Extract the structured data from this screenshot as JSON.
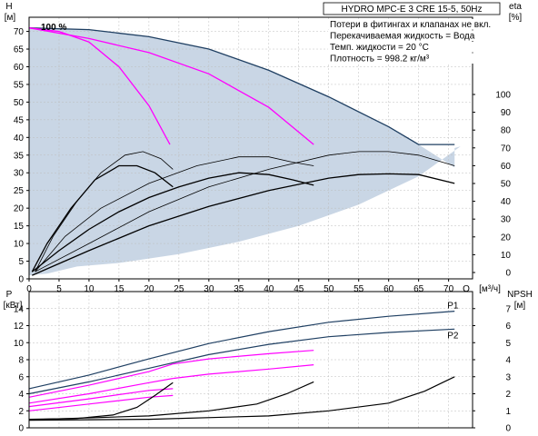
{
  "chart_data": [
    {
      "type": "line",
      "title": "HYDRO MPC-E 3 CRE 15-5, 50Hz",
      "notes": [
        "Потери в фитингах и клапанах не вкл.",
        "Перекачиваемая жидкость = Вода",
        "Темп. жидкости = 20 °C",
        "Плотность = 998.2 кг/м³"
      ],
      "percent_label": "100 %",
      "ylabel": "H",
      "yunit": "[м]",
      "y2label": "eta",
      "y2unit": "[%]",
      "xlabel": "Q",
      "xunit": "[м³/ч]",
      "xlim": [
        0,
        74
      ],
      "ylim": [
        0,
        74
      ],
      "y2lim": [
        0,
        100
      ],
      "xticks": [
        0,
        5,
        10,
        15,
        20,
        25,
        30,
        35,
        40,
        45,
        50,
        55,
        60,
        65,
        70
      ],
      "yticks": [
        0,
        5,
        10,
        15,
        20,
        25,
        30,
        35,
        40,
        45,
        50,
        55,
        60,
        65,
        70
      ],
      "y2ticks": [
        0,
        10,
        20,
        30,
        40,
        50,
        60,
        70,
        80,
        90,
        100
      ],
      "grid": true,
      "area": {
        "upper": [
          [
            0,
            71
          ],
          [
            10,
            70.5
          ],
          [
            20,
            68.5
          ],
          [
            30,
            65
          ],
          [
            40,
            59
          ],
          [
            50,
            51.5
          ],
          [
            60,
            43
          ],
          [
            65,
            38
          ],
          [
            71,
            31.5
          ],
          [
            71,
            37
          ],
          [
            72,
            37.5
          ]
        ],
        "lower": [
          [
            72,
            37.5
          ],
          [
            65,
            29
          ],
          [
            55,
            21
          ],
          [
            45,
            15
          ],
          [
            35,
            10.5
          ],
          [
            25,
            7
          ],
          [
            15,
            4.5
          ],
          [
            8,
            3.5
          ],
          [
            3,
            1.5
          ],
          [
            0,
            1
          ]
        ]
      },
      "series": [
        {
          "color": "#1f3f62",
          "values": [
            [
              0,
              71
            ],
            [
              10,
              70.5
            ],
            [
              20,
              68.5
            ],
            [
              30,
              65
            ],
            [
              40,
              59
            ],
            [
              50,
              51.5
            ],
            [
              60,
              43
            ],
            [
              65,
              38
            ],
            [
              71,
              38
            ]
          ]
        },
        {
          "color": "#ff00ff",
          "values": [
            [
              0,
              71
            ],
            [
              5,
              70
            ],
            [
              10,
              67
            ],
            [
              15,
              60
            ],
            [
              20,
              49
            ],
            [
              23.5,
              38
            ]
          ]
        },
        {
          "color": "#ff00ff",
          "values": [
            [
              0,
              71
            ],
            [
              10,
              68
            ],
            [
              20,
              64
            ],
            [
              30,
              58
            ],
            [
              40,
              48.5
            ],
            [
              47.5,
              38
            ]
          ]
        },
        {
          "color": "#000000",
          "values": [
            [
              0.5,
              2
            ],
            [
              3,
              10
            ],
            [
              7,
              20
            ],
            [
              11,
              28
            ],
            [
              15,
              32
            ],
            [
              18,
              32
            ],
            [
              21,
              30
            ],
            [
              24,
              26
            ]
          ]
        },
        {
          "color": "#000000",
          "values": [
            [
              0.5,
              2
            ],
            [
              5,
              8
            ],
            [
              10,
              14
            ],
            [
              15,
              19
            ],
            [
              20,
              23
            ],
            [
              25,
              26
            ],
            [
              30,
              28.5
            ],
            [
              35,
              30
            ],
            [
              40,
              29.5
            ],
            [
              44,
              28
            ],
            [
              47.5,
              26.5
            ]
          ]
        },
        {
          "color": "#000000",
          "values": [
            [
              0.5,
              1
            ],
            [
              10,
              8
            ],
            [
              20,
              15
            ],
            [
              30,
              20.5
            ],
            [
              40,
              25
            ],
            [
              50,
              28.5
            ],
            [
              55,
              29.5
            ],
            [
              60,
              29.7
            ],
            [
              65,
              29.5
            ],
            [
              71,
              27
            ]
          ]
        },
        {
          "color": "#000000",
          "values": [
            [
              1,
              2
            ],
            [
              4,
              12
            ],
            [
              8,
              22
            ],
            [
              12,
              30
            ],
            [
              16,
              35
            ],
            [
              19,
              36
            ],
            [
              22,
              34
            ],
            [
              24,
              31
            ]
          ]
        },
        {
          "color": "#000000",
          "values": [
            [
              1,
              2
            ],
            [
              6,
              12
            ],
            [
              12,
              20
            ],
            [
              20,
              27
            ],
            [
              28,
              32
            ],
            [
              35,
              34.5
            ],
            [
              40,
              34.5
            ],
            [
              44,
              33
            ],
            [
              47.5,
              32
            ]
          ]
        },
        {
          "color": "#000000",
          "values": [
            [
              1,
              2
            ],
            [
              10,
              10
            ],
            [
              20,
              19
            ],
            [
              30,
              26
            ],
            [
              40,
              31
            ],
            [
              50,
              35
            ],
            [
              55,
              36
            ],
            [
              60,
              36
            ],
            [
              65,
              35
            ],
            [
              71,
              32
            ]
          ]
        }
      ]
    },
    {
      "type": "line",
      "ylabel": "P",
      "yunit": "[кВт]",
      "y2label": "NPSH",
      "y2unit": "[м]",
      "xlim": [
        0,
        74
      ],
      "ylim": [
        0,
        16
      ],
      "y2lim": [
        0,
        8
      ],
      "yticks": [
        0,
        2,
        4,
        6,
        8,
        10,
        12,
        14
      ],
      "y2ticks": [
        0,
        1,
        2,
        3,
        4,
        5,
        6,
        7
      ],
      "grid": true,
      "series": [
        {
          "name": "P1",
          "color": "#1f3f62",
          "values": [
            [
              0,
              4.6
            ],
            [
              10,
              6.2
            ],
            [
              20,
              8.1
            ],
            [
              30,
              9.9
            ],
            [
              40,
              11.3
            ],
            [
              50,
              12.4
            ],
            [
              60,
              13.1
            ],
            [
              71,
              13.7
            ]
          ]
        },
        {
          "name": "P2",
          "color": "#1f3f62",
          "values": [
            [
              0,
              4.0
            ],
            [
              10,
              5.4
            ],
            [
              20,
              7.0
            ],
            [
              30,
              8.6
            ],
            [
              40,
              9.8
            ],
            [
              50,
              10.7
            ],
            [
              60,
              11.2
            ],
            [
              71,
              11.6
            ]
          ]
        },
        {
          "color": "#ff00ff",
          "values": [
            [
              0,
              3.6
            ],
            [
              10,
              5.0
            ],
            [
              20,
              6.6
            ],
            [
              24,
              7.5
            ]
          ]
        },
        {
          "color": "#ff00ff",
          "values": [
            [
              0,
              2.9
            ],
            [
              10,
              4.0
            ],
            [
              20,
              5.3
            ],
            [
              24,
              5.8
            ]
          ]
        },
        {
          "color": "#ff00ff",
          "values": [
            [
              0,
              2.5
            ],
            [
              10,
              3.4
            ],
            [
              20,
              4.4
            ],
            [
              24,
              4.6
            ]
          ]
        },
        {
          "color": "#ff00ff",
          "values": [
            [
              0,
              2.0
            ],
            [
              10,
              2.8
            ],
            [
              20,
              3.6
            ],
            [
              24,
              3.8
            ]
          ]
        },
        {
          "color": "#ff00ff",
          "values": [
            [
              24,
              7.5
            ],
            [
              30,
              8.1
            ],
            [
              40,
              8.7
            ],
            [
              47.5,
              9.1
            ]
          ]
        },
        {
          "color": "#ff00ff",
          "values": [
            [
              24,
              5.8
            ],
            [
              30,
              6.3
            ],
            [
              40,
              6.9
            ],
            [
              47.5,
              7.4
            ]
          ]
        },
        {
          "color": "#000000",
          "values": [
            [
              0,
              1.0
            ],
            [
              8,
              1.1
            ],
            [
              14,
              1.5
            ],
            [
              18,
              2.4
            ],
            [
              21,
              3.8
            ],
            [
              24,
              5.3
            ]
          ]
        },
        {
          "color": "#000000",
          "values": [
            [
              0,
              0.95
            ],
            [
              20,
              1.4
            ],
            [
              30,
              2.0
            ],
            [
              38,
              2.8
            ],
            [
              43,
              4.0
            ],
            [
              47.5,
              5.4
            ]
          ]
        },
        {
          "color": "#000000",
          "values": [
            [
              0,
              0.9
            ],
            [
              20,
              1.0
            ],
            [
              40,
              1.4
            ],
            [
              50,
              2.0
            ],
            [
              60,
              2.9
            ],
            [
              66,
              4.3
            ],
            [
              71,
              6.0
            ]
          ]
        }
      ]
    }
  ],
  "colors": {
    "area": "#c9d6e5",
    "grid": "#bdbdbd",
    "frame": "#000000"
  }
}
